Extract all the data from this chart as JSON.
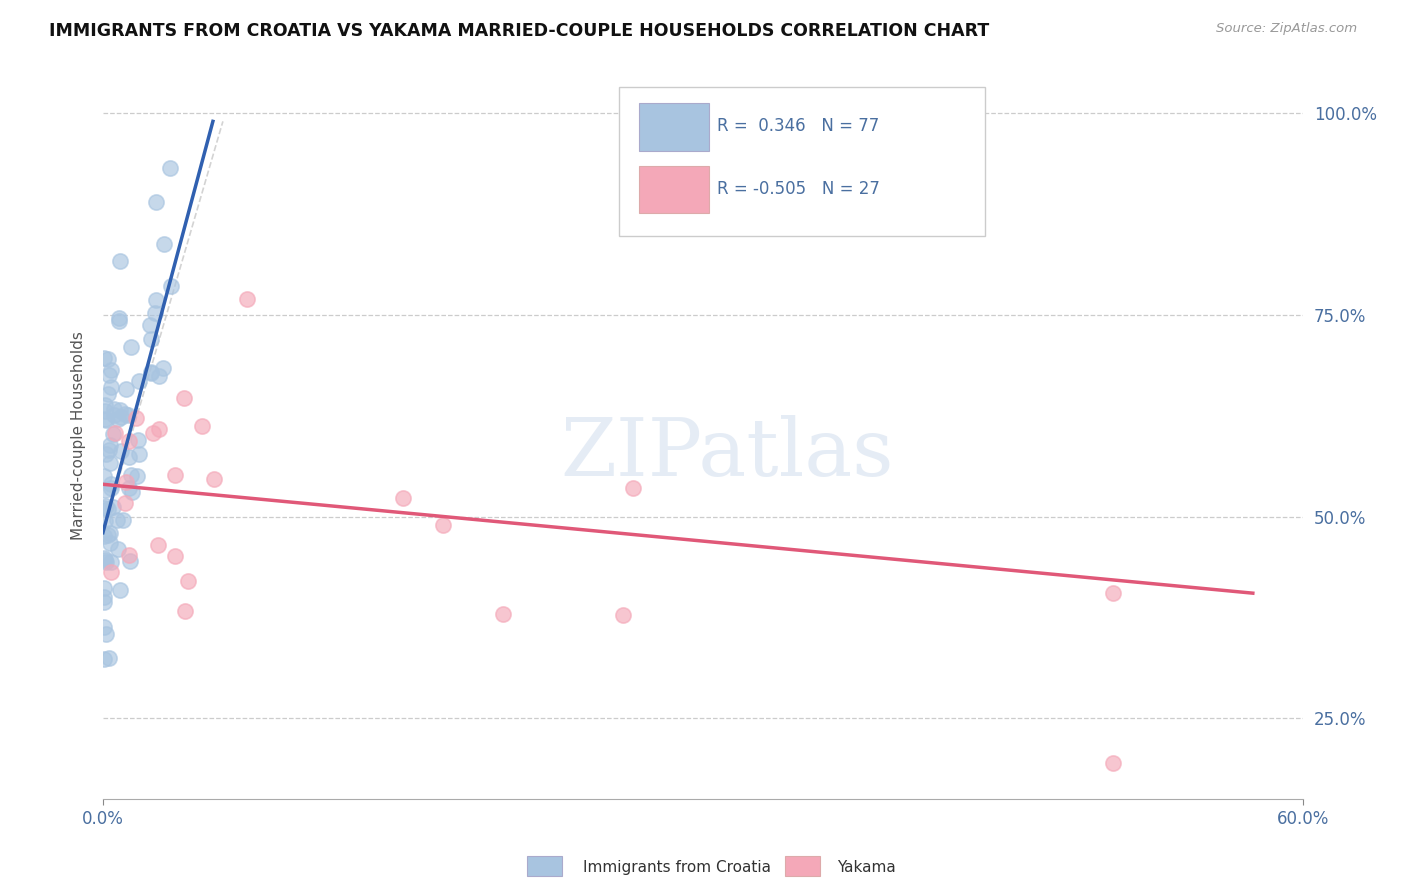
{
  "title": "IMMIGRANTS FROM CROATIA VS YAKAMA MARRIED-COUPLE HOUSEHOLDS CORRELATION CHART",
  "source_text": "Source: ZipAtlas.com",
  "ylabel": "Married-couple Households",
  "xlim": [
    0.0,
    0.6
  ],
  "ylim": [
    0.15,
    1.05
  ],
  "y_ticks": [
    0.25,
    0.5,
    0.75,
    1.0
  ],
  "y_tick_labels": [
    "25.0%",
    "50.0%",
    "75.0%",
    "100.0%"
  ],
  "blue_color": "#a8c4e0",
  "pink_color": "#f4a8b8",
  "blue_line_color": "#3060b0",
  "pink_line_color": "#e05878",
  "blue_R": 0.346,
  "blue_N": 77,
  "pink_R": -0.505,
  "pink_N": 27,
  "legend_label_blue": "Immigrants from Croatia",
  "legend_label_pink": "Yakama",
  "watermark": "ZIPatlas",
  "background_color": "#ffffff",
  "grid_color": "#cccccc",
  "tick_color": "#4a6fa0",
  "ref_line_color": "#c0c0c0"
}
